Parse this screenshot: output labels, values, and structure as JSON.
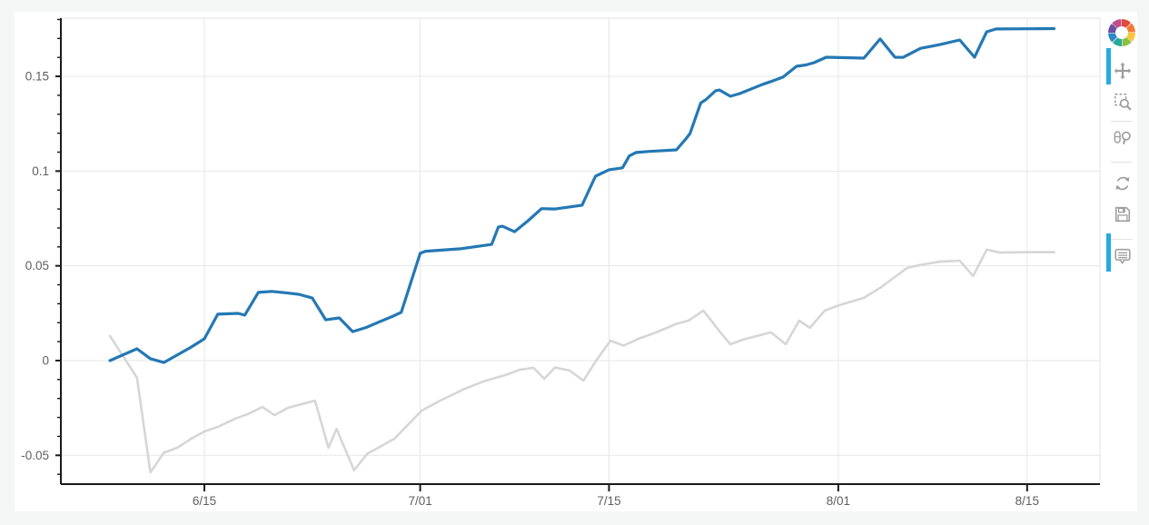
{
  "page": {
    "background": "#f4f5f5",
    "canvas_background": "#ffffff"
  },
  "toolbar": {
    "logo_name": "bokeh-logo",
    "icon_color": "#9d9d9d",
    "active_color": "#26aae1",
    "tools": [
      {
        "name": "pan",
        "active": true
      },
      {
        "name": "box-zoom",
        "active": false
      },
      {
        "name": "wheel-zoom",
        "active": false
      },
      {
        "name": "reset",
        "active": false
      },
      {
        "name": "save",
        "active": false
      },
      {
        "name": "hover",
        "active": true
      }
    ]
  },
  "chart_data": {
    "type": "line",
    "title": "",
    "xlabel": "",
    "ylabel": "",
    "grid": true,
    "legend_position": "none",
    "x_axis": {
      "unit": "days (day 0 = 6/08, daily data ending 8/17)",
      "tick_labels": [
        "6/15",
        "7/01",
        "7/15",
        "8/01",
        "8/15"
      ],
      "tick_days": [
        7,
        23,
        37,
        54,
        68
      ],
      "xlim_days": [
        -3.64,
        73.4
      ]
    },
    "y_axis": {
      "tick_labels": [
        "-0.05",
        "0",
        "0.05",
        "0.1",
        "0.15"
      ],
      "tick_values": [
        -0.05,
        0,
        0.05,
        0.1,
        0.15
      ],
      "minor_tick_step": 0.01,
      "minor_range": [
        -0.06,
        0.18
      ],
      "ylim": [
        -0.0652,
        0.1807
      ]
    },
    "axis_color": "#1a1a1a",
    "grid_color": "#e7e7e7",
    "outline_color": "#e3e3e3",
    "label_color": "#5f5f5f",
    "series": [
      {
        "name": "gray-line",
        "color": "#d6d6d6",
        "line_width": 2.6,
        "points": [
          [
            0,
            0.013
          ],
          [
            2,
            -0.009
          ],
          [
            3,
            -0.059
          ],
          [
            4,
            -0.0486
          ],
          [
            5,
            -0.046
          ],
          [
            6,
            -0.0414
          ],
          [
            7,
            -0.0374
          ],
          [
            8,
            -0.035
          ],
          [
            9.3,
            -0.0306
          ],
          [
            10.3,
            -0.028
          ],
          [
            11.3,
            -0.0245
          ],
          [
            12.2,
            -0.0288
          ],
          [
            13.2,
            -0.0249
          ],
          [
            14.2,
            -0.023
          ],
          [
            15.2,
            -0.0211
          ],
          [
            16.2,
            -0.046
          ],
          [
            16.8,
            -0.036
          ],
          [
            18.1,
            -0.0578
          ],
          [
            19.1,
            -0.049
          ],
          [
            20.1,
            -0.0452
          ],
          [
            21.1,
            -0.0412
          ],
          [
            23.1,
            -0.0264
          ],
          [
            24.5,
            -0.0211
          ],
          [
            26.3,
            -0.0149
          ],
          [
            27.7,
            -0.011
          ],
          [
            29.3,
            -0.0077
          ],
          [
            30.4,
            -0.0048
          ],
          [
            31.4,
            -0.0038
          ],
          [
            32.2,
            -0.0096
          ],
          [
            33,
            -0.0036
          ],
          [
            34.1,
            -0.0053
          ],
          [
            35.1,
            -0.0106
          ],
          [
            36.1,
            0.0005
          ],
          [
            37.1,
            0.0105
          ],
          [
            38.1,
            0.0079
          ],
          [
            39.1,
            0.0113
          ],
          [
            40.4,
            0.0146
          ],
          [
            42,
            0.0194
          ],
          [
            42.9,
            0.0211
          ],
          [
            44,
            0.0264
          ],
          [
            45.3,
            0.0145
          ],
          [
            46,
            0.0086
          ],
          [
            47,
            0.0112
          ],
          [
            49,
            0.0149
          ],
          [
            50.1,
            0.0086
          ],
          [
            51.1,
            0.0211
          ],
          [
            51.9,
            0.0173
          ],
          [
            53,
            0.0264
          ],
          [
            54.1,
            0.0293
          ],
          [
            55.9,
            0.0331
          ],
          [
            57.1,
            0.0384
          ],
          [
            59.1,
            0.0489
          ],
          [
            60.1,
            0.0505
          ],
          [
            61.5,
            0.0522
          ],
          [
            63,
            0.0527
          ],
          [
            64,
            0.0446
          ],
          [
            65,
            0.0585
          ],
          [
            66,
            0.057
          ],
          [
            68.1,
            0.0572
          ],
          [
            70,
            0.0572
          ]
        ]
      },
      {
        "name": "blue-line",
        "color": "#2478b4",
        "line_width": 3.2,
        "points": [
          [
            0,
            0.0
          ],
          [
            2,
            0.0062
          ],
          [
            3,
            0.001
          ],
          [
            4,
            -0.001
          ],
          [
            6,
            0.007
          ],
          [
            7,
            0.0115
          ],
          [
            8,
            0.0245
          ],
          [
            9.5,
            0.0249
          ],
          [
            10,
            0.024
          ],
          [
            11,
            0.036
          ],
          [
            12,
            0.0365
          ],
          [
            13,
            0.0358
          ],
          [
            14,
            0.035
          ],
          [
            15,
            0.033
          ],
          [
            16,
            0.0215
          ],
          [
            17,
            0.0225
          ],
          [
            18,
            0.0153
          ],
          [
            19,
            0.0175
          ],
          [
            20,
            0.0205
          ],
          [
            21,
            0.0235
          ],
          [
            21.6,
            0.0255
          ],
          [
            23,
            0.0566
          ],
          [
            23.4,
            0.0577
          ],
          [
            26,
            0.059
          ],
          [
            28.3,
            0.0613
          ],
          [
            28.8,
            0.0705
          ],
          [
            29.1,
            0.0709
          ],
          [
            30,
            0.068
          ],
          [
            31,
            0.0738
          ],
          [
            32,
            0.0802
          ],
          [
            33,
            0.08
          ],
          [
            35,
            0.082
          ],
          [
            36,
            0.0973
          ],
          [
            37,
            0.1007
          ],
          [
            38,
            0.1017
          ],
          [
            38.5,
            0.108
          ],
          [
            39,
            0.1098
          ],
          [
            40,
            0.1104
          ],
          [
            42,
            0.1112
          ],
          [
            42.7,
            0.117
          ],
          [
            43,
            0.1198
          ],
          [
            43.8,
            0.136
          ],
          [
            44.2,
            0.1378
          ],
          [
            44.9,
            0.1424
          ],
          [
            45.2,
            0.1428
          ],
          [
            46,
            0.1395
          ],
          [
            46.7,
            0.1409
          ],
          [
            48.4,
            0.1458
          ],
          [
            49.2,
            0.1477
          ],
          [
            49.9,
            0.1496
          ],
          [
            50.9,
            0.1553
          ],
          [
            51.6,
            0.156
          ],
          [
            52.2,
            0.1572
          ],
          [
            53.1,
            0.1601
          ],
          [
            55.9,
            0.1596
          ],
          [
            57.1,
            0.1697
          ],
          [
            58.2,
            0.1601
          ],
          [
            58.8,
            0.16
          ],
          [
            60.1,
            0.1648
          ],
          [
            61.5,
            0.1667
          ],
          [
            63,
            0.1692
          ],
          [
            64.1,
            0.1601
          ],
          [
            65,
            0.1735
          ],
          [
            65.7,
            0.175
          ],
          [
            68,
            0.1751
          ],
          [
            70,
            0.1752
          ]
        ]
      }
    ]
  }
}
